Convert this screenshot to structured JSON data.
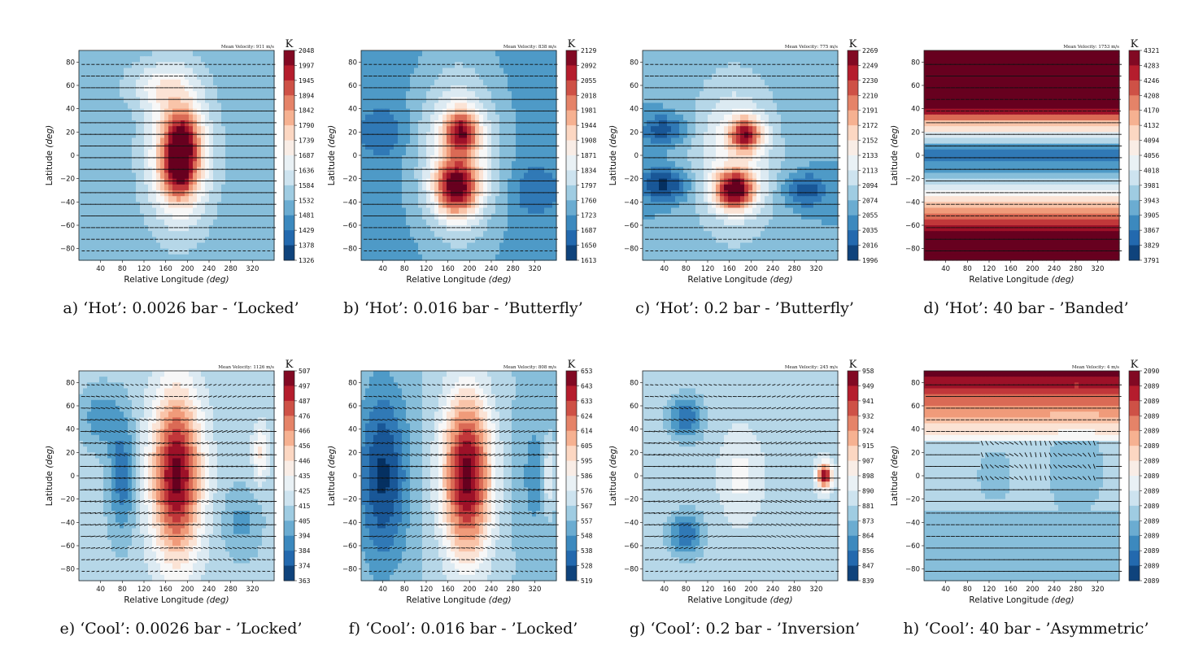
{
  "figure": {
    "xlabel_prefix": "Relative Longitude ",
    "xlabel_unit": "(deg)",
    "ylabel_prefix": "Latitude ",
    "ylabel_unit": "(deg)",
    "colorbar_unit": "K",
    "x_ticks": [
      "40",
      "80",
      "120",
      "160",
      "200",
      "240",
      "280",
      "320"
    ],
    "y_ticks": [
      "80",
      "60",
      "40",
      "20",
      "0",
      "−20",
      "−40",
      "−60",
      "−80"
    ]
  },
  "chart_data": [
    {
      "type": "heatmap",
      "caption": "a) ‘Hot’: 0.0026 bar - ‘Locked’",
      "mean_velocity": "Mean Velocity: 911 m/s",
      "xlim": [
        0,
        360
      ],
      "ylim": [
        -90,
        90
      ],
      "colorbar_ticks": [
        "2048",
        "1997",
        "1945",
        "1894",
        "1842",
        "1790",
        "1739",
        "1687",
        "1636",
        "1584",
        "1532",
        "1481",
        "1429",
        "1378",
        "1326"
      ],
      "pattern": "locked-hot",
      "colormap": "RdBu_r"
    },
    {
      "type": "heatmap",
      "caption": "b) ‘Hot’: 0.016 bar - ’Butterfly’",
      "mean_velocity": "Mean Velocity: 838 m/s",
      "xlim": [
        0,
        360
      ],
      "ylim": [
        -90,
        90
      ],
      "colorbar_ticks": [
        "2129",
        "2092",
        "2055",
        "2018",
        "1981",
        "1944",
        "1908",
        "1871",
        "1834",
        "1797",
        "1760",
        "1723",
        "1687",
        "1650",
        "1613"
      ],
      "pattern": "butterfly",
      "colormap": "RdBu_r"
    },
    {
      "type": "heatmap",
      "caption": "c) ‘Hot’: 0.2 bar - ’Butterfly’",
      "mean_velocity": "Mean Velocity: 775 m/s",
      "xlim": [
        0,
        360
      ],
      "ylim": [
        -90,
        90
      ],
      "colorbar_ticks": [
        "2269",
        "2249",
        "2230",
        "2210",
        "2191",
        "2172",
        "2152",
        "2133",
        "2113",
        "2094",
        "2074",
        "2055",
        "2035",
        "2016",
        "1996"
      ],
      "pattern": "butterfly-narrow",
      "colormap": "RdBu_r"
    },
    {
      "type": "heatmap",
      "caption": "d) ‘Hot’: 40 bar - ’Banded’",
      "mean_velocity": "Mean Velocity: 1753 m/s",
      "xlim": [
        0,
        360
      ],
      "ylim": [
        -90,
        90
      ],
      "colorbar_ticks": [
        "4321",
        "4283",
        "4246",
        "4208",
        "4170",
        "4132",
        "4094",
        "4056",
        "4018",
        "3981",
        "3943",
        "3905",
        "3867",
        "3829",
        "3791"
      ],
      "pattern": "banded",
      "colormap": "RdBu_r"
    },
    {
      "type": "heatmap",
      "caption": "e) ‘Cool’: 0.0026 bar - ’Locked’",
      "mean_velocity": "Mean Velocity: 1126 m/s",
      "xlim": [
        0,
        360
      ],
      "ylim": [
        -90,
        90
      ],
      "colorbar_ticks": [
        "507",
        "497",
        "487",
        "476",
        "466",
        "456",
        "446",
        "435",
        "425",
        "415",
        "405",
        "394",
        "384",
        "374",
        "363"
      ],
      "pattern": "locked-cool",
      "colormap": "RdBu_r"
    },
    {
      "type": "heatmap",
      "caption": "f) ‘Cool’: 0.016 bar - ’Locked’",
      "mean_velocity": "Mean Velocity: 808 m/s",
      "xlim": [
        0,
        360
      ],
      "ylim": [
        -90,
        90
      ],
      "colorbar_ticks": [
        "653",
        "643",
        "633",
        "624",
        "614",
        "605",
        "595",
        "586",
        "576",
        "567",
        "557",
        "548",
        "538",
        "528",
        "519"
      ],
      "pattern": "locked-cool-deep",
      "colormap": "RdBu_r"
    },
    {
      "type": "heatmap",
      "caption": "g) ‘Cool’: 0.2 bar - ’Inversion’",
      "mean_velocity": "Mean Velocity: 245 m/s",
      "xlim": [
        0,
        360
      ],
      "ylim": [
        -90,
        90
      ],
      "colorbar_ticks": [
        "958",
        "949",
        "941",
        "932",
        "924",
        "915",
        "907",
        "898",
        "890",
        "881",
        "873",
        "864",
        "856",
        "847",
        "839"
      ],
      "pattern": "inversion",
      "colormap": "RdBu_r"
    },
    {
      "type": "heatmap",
      "caption": "h) ‘Cool’: 40 bar - ’Asymmetric’",
      "mean_velocity": "Mean Velocity: 4 m/s",
      "xlim": [
        0,
        360
      ],
      "ylim": [
        -90,
        90
      ],
      "colorbar_ticks": [
        "2090",
        "2089",
        "2089",
        "2089",
        "2089",
        "2089",
        "2089",
        "2089",
        "2089",
        "2089",
        "2089",
        "2089",
        "2089",
        "2089",
        "2089"
      ],
      "pattern": "asymmetric",
      "colormap": "RdBu_r"
    }
  ]
}
